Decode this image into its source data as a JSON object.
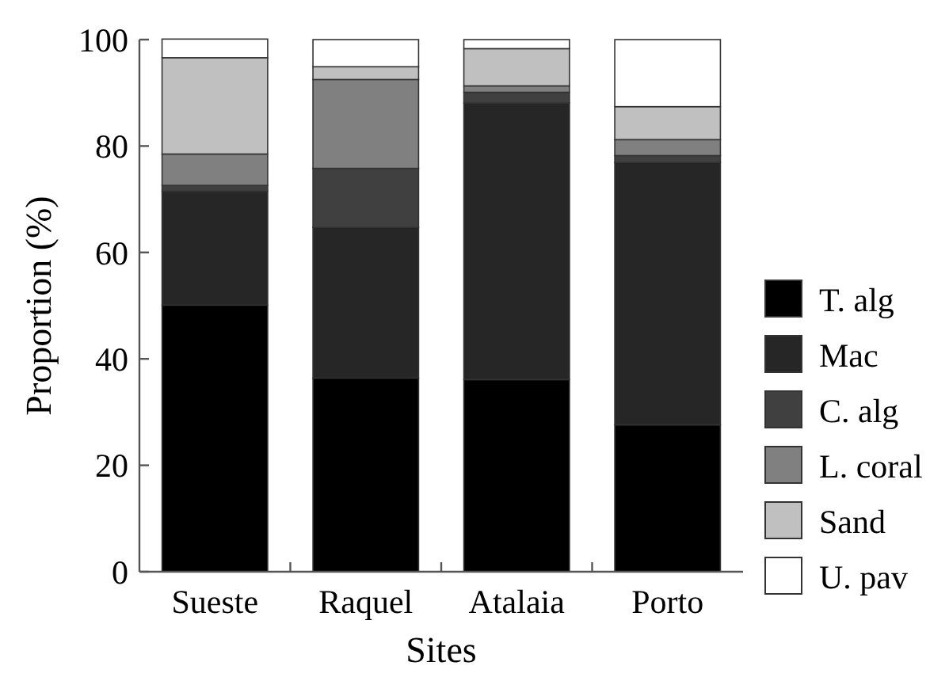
{
  "chart_data": {
    "type": "bar",
    "stacked": true,
    "xlabel": "Sites",
    "ylabel": "Proportion (%)",
    "categories": [
      "Sueste",
      "Raquel",
      "Atalaia",
      "Porto"
    ],
    "ylim": [
      0,
      100
    ],
    "yticks": [
      0,
      20,
      40,
      60,
      80,
      100
    ],
    "legend": "right",
    "series": [
      {
        "name": "T. alg",
        "color": "#000000",
        "values": [
          50.1,
          36.4,
          36.1,
          27.6
        ]
      },
      {
        "name": "Mac",
        "color": "#262626",
        "values": [
          21.4,
          28.3,
          52.0,
          49.3
        ]
      },
      {
        "name": "C. alg",
        "color": "#404040",
        "values": [
          1.1,
          11.1,
          2.0,
          1.3
        ]
      },
      {
        "name": "L. coral",
        "color": "#808080",
        "values": [
          5.9,
          16.7,
          1.2,
          3.0
        ]
      },
      {
        "name": "Sand",
        "color": "#c0c0c0",
        "values": [
          18.1,
          2.4,
          7.0,
          6.2
        ]
      },
      {
        "name": "U. pav",
        "color": "#ffffff",
        "values": [
          3.5,
          5.1,
          1.7,
          12.6
        ]
      }
    ]
  }
}
